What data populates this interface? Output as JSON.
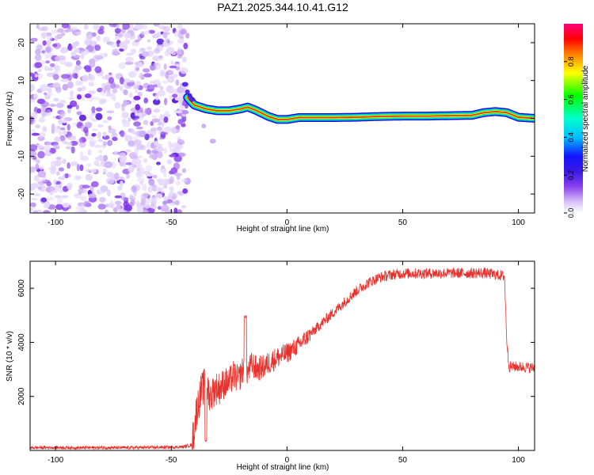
{
  "title": "PAZ1.2025.344.10.41.G12",
  "chart_data": [
    {
      "type": "heatmap",
      "xlabel": "Height of straight line (km)",
      "ylabel": "Frequency (Hz)",
      "xlim": [
        -111,
        107
      ],
      "ylim": [
        -25,
        25
      ],
      "xticks": [
        -100,
        -50,
        0,
        50,
        100
      ],
      "yticks": [
        -20,
        -10,
        0,
        10,
        20
      ],
      "xtick_labels": [
        "-100",
        "-50",
        "0",
        "50",
        "100"
      ],
      "ytick_labels": [
        "-20",
        "-10",
        "0",
        "10",
        "20"
      ],
      "grid": false,
      "noise_region_x": [
        -111,
        -43
      ],
      "ridge": {
        "description_x": [
          -43,
          -40,
          -35,
          -30,
          -25,
          -20,
          -17,
          -13,
          -8,
          -4,
          0,
          5,
          10,
          20,
          30,
          40,
          50,
          60,
          70,
          80,
          85,
          90,
          95,
          100,
          107
        ],
        "frequency": [
          5.5,
          3.5,
          2.5,
          2.0,
          2.0,
          2.5,
          3.0,
          2.0,
          0.5,
          -0.3,
          -0.3,
          0.2,
          0.2,
          0.2,
          0.3,
          0.5,
          0.6,
          0.6,
          0.7,
          0.8,
          1.5,
          1.8,
          1.5,
          0.3,
          0.0
        ]
      },
      "colorbar": {
        "label": "Normalized spectral amplitude",
        "range": [
          0,
          1
        ],
        "ticks": [
          0.0,
          0.2,
          0.4,
          0.6,
          0.8
        ],
        "tick_labels": [
          "0.0",
          "0.2",
          "0.4",
          "0.6",
          "0.8"
        ],
        "colors": [
          "#ffffff",
          "#d7bff7",
          "#8a3ff0",
          "#3a19e0",
          "#1414ff",
          "#00bfff",
          "#00ffcc",
          "#00ff00",
          "#ffff00",
          "#ff8000",
          "#ff0000",
          "#ff0080"
        ]
      }
    },
    {
      "type": "line",
      "xlabel": "Height of straight line (km)",
      "ylabel": "SNR (10 * v/v)",
      "xlim": [
        -111,
        107
      ],
      "ylim": [
        0,
        7000
      ],
      "xticks": [
        -100,
        -50,
        0,
        50,
        100
      ],
      "yticks": [
        2000,
        4000,
        6000
      ],
      "xtick_labels": [
        "-100",
        "-50",
        "0",
        "50",
        "100"
      ],
      "ytick_labels": [
        "2000",
        "4000",
        "6000"
      ],
      "grid": false,
      "series": [
        {
          "name": "SNR",
          "color": "#e8312c",
          "x": [
            -111,
            -100,
            -90,
            -80,
            -70,
            -60,
            -50,
            -45,
            -41,
            -39,
            -37,
            -35,
            -33,
            -31,
            -29,
            -27,
            -25,
            -23,
            -21,
            -19,
            -17,
            -15,
            -13,
            -10,
            -5,
            0,
            5,
            10,
            15,
            20,
            25,
            30,
            35,
            40,
            45,
            50,
            55,
            60,
            65,
            70,
            75,
            80,
            85,
            90,
            94,
            95,
            96,
            100,
            107
          ],
          "y": [
            100,
            110,
            100,
            105,
            100,
            110,
            120,
            130,
            200,
            1500,
            2200,
            2500,
            2000,
            2300,
            2300,
            2500,
            2500,
            2800,
            2600,
            3000,
            2900,
            3200,
            3000,
            3100,
            3400,
            3600,
            3900,
            4300,
            4700,
            5100,
            5500,
            5900,
            6200,
            6400,
            6500,
            6550,
            6550,
            6550,
            6560,
            6560,
            6560,
            6560,
            6570,
            6500,
            6450,
            4000,
            3100,
            3100,
            3050
          ]
        }
      ]
    }
  ]
}
